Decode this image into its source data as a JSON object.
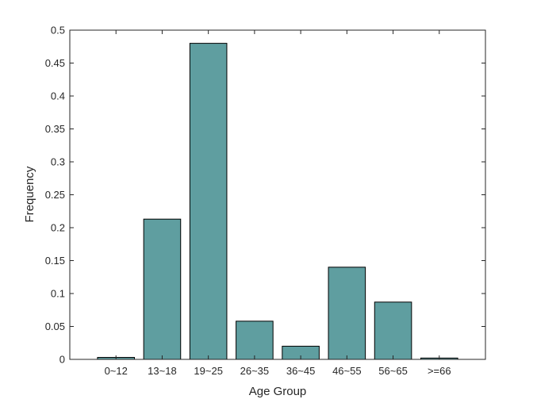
{
  "chart_data": {
    "type": "bar",
    "title": "",
    "xlabel": "Age Group",
    "ylabel": "Frequency",
    "categories": [
      "0~12",
      "13~18",
      "19~25",
      "26~35",
      "36~45",
      "46~55",
      "56~65",
      ">=66"
    ],
    "values": [
      0.003,
      0.213,
      0.48,
      0.058,
      0.02,
      0.14,
      0.087,
      0.002
    ],
    "ylim": [
      0,
      0.5
    ],
    "yticks": [
      "0",
      "0.05",
      "0.1",
      "0.15",
      "0.2",
      "0.25",
      "0.3",
      "0.35",
      "0.4",
      "0.45",
      "0.5"
    ],
    "grid": false,
    "legend": false,
    "bar_color": "#5f9ea0",
    "edge_color": "#000000"
  }
}
